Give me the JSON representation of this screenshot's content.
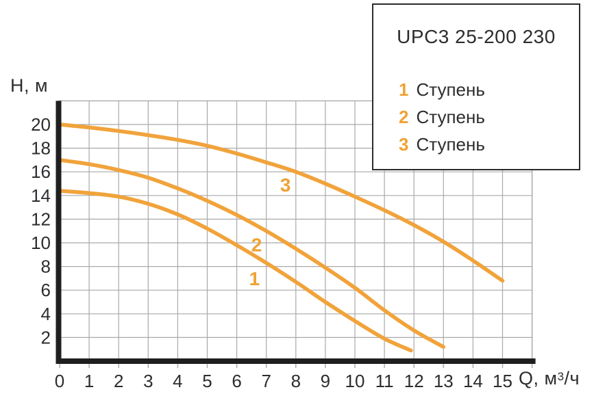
{
  "title": "UPC3 25-200 230",
  "colors": {
    "curve": "#F1A33B",
    "accent": "#F0A234",
    "text": "#2D2D30",
    "grid": "#A9A9A9",
    "axis": "#1F1F1F",
    "legend_border": "#2B2B2E",
    "background": "#FFFFFF"
  },
  "axes": {
    "y_title": "H, м",
    "x_title_prefix": "Q, м",
    "x_title_sup": "3",
    "x_title_suffix": "/ч"
  },
  "legend": {
    "title": "UPC3 25-200 230",
    "items": [
      {
        "num": "1",
        "label": "Ступень"
      },
      {
        "num": "2",
        "label": "Ступень"
      },
      {
        "num": "3",
        "label": "Ступень"
      }
    ]
  },
  "chart_data": {
    "type": "line",
    "title": "UPC3 25-200 230",
    "xlabel": "Q, м³/ч",
    "ylabel": "H, м",
    "xlim": [
      0,
      16
    ],
    "ylim": [
      0,
      22
    ],
    "grid": true,
    "legend_position": "top-right",
    "x_ticks": [
      0,
      1,
      2,
      3,
      4,
      5,
      6,
      7,
      8,
      9,
      10,
      11,
      12,
      13,
      14,
      15
    ],
    "y_ticks": [
      2,
      4,
      6,
      8,
      10,
      12,
      14,
      16,
      18,
      20
    ],
    "series": [
      {
        "name": "1 Ступень",
        "points": [
          [
            0,
            14.4
          ],
          [
            1,
            14.2
          ],
          [
            2,
            13.9
          ],
          [
            3,
            13.3
          ],
          [
            4,
            12.4
          ],
          [
            5,
            11.2
          ],
          [
            6,
            9.8
          ],
          [
            7,
            8.3
          ],
          [
            8,
            6.7
          ],
          [
            9,
            5.0
          ],
          [
            10,
            3.4
          ],
          [
            11,
            1.9
          ],
          [
            11.9,
            0.9
          ]
        ]
      },
      {
        "name": "2 Ступень",
        "points": [
          [
            0,
            17.0
          ],
          [
            1,
            16.65
          ],
          [
            2,
            16.15
          ],
          [
            3,
            15.5
          ],
          [
            4,
            14.6
          ],
          [
            5,
            13.55
          ],
          [
            6,
            12.35
          ],
          [
            7,
            11.0
          ],
          [
            8,
            9.5
          ],
          [
            9,
            7.9
          ],
          [
            10,
            6.2
          ],
          [
            11,
            4.3
          ],
          [
            12,
            2.6
          ],
          [
            13,
            1.2
          ]
        ]
      },
      {
        "name": "3 Ступень",
        "points": [
          [
            0,
            20.0
          ],
          [
            1,
            19.75
          ],
          [
            2,
            19.45
          ],
          [
            3,
            19.1
          ],
          [
            4,
            18.7
          ],
          [
            5,
            18.2
          ],
          [
            6,
            17.55
          ],
          [
            7,
            16.8
          ],
          [
            8,
            16.0
          ],
          [
            9,
            15.0
          ],
          [
            10,
            13.9
          ],
          [
            11,
            12.75
          ],
          [
            12,
            11.5
          ],
          [
            13,
            10.1
          ],
          [
            14,
            8.5
          ],
          [
            15,
            6.8
          ]
        ]
      }
    ],
    "annotations": [
      {
        "text": "1",
        "x": 6.6,
        "y": 7.0
      },
      {
        "text": "2",
        "x": 6.67,
        "y": 9.85
      },
      {
        "text": "3",
        "x": 7.65,
        "y": 14.9
      }
    ]
  }
}
